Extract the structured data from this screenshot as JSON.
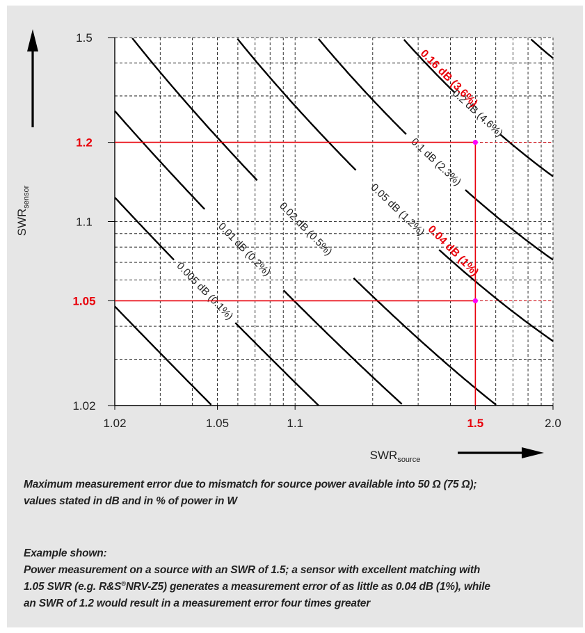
{
  "chart_data": {
    "type": "line",
    "xscale": "log-log mismatch chart",
    "yscale": "log-log mismatch chart",
    "x_ticks": [
      "1.02",
      "1.05",
      "1.1",
      "1.5",
      "2.0"
    ],
    "y_ticks": [
      "1.02",
      "1.05",
      "1.1",
      "1.2",
      "1.5"
    ],
    "highlight_ticks": {
      "x": [
        "1.5"
      ],
      "y": [
        "1.2",
        "1.05"
      ]
    },
    "xlabel": {
      "main": "SWR",
      "sub": "source"
    },
    "ylabel": {
      "main": "SWR",
      "sub": "sensor"
    },
    "xlim": [
      1.02,
      2.0
    ],
    "ylim": [
      1.02,
      1.5
    ],
    "grid": "dashed",
    "series": [
      {
        "name": "0.005 dB (0.1%)",
        "error_db": 0.005
      },
      {
        "name": "0.01 dB (0.2%)",
        "error_db": 0.01
      },
      {
        "name": "0.02 dB (0.5%)",
        "error_db": 0.02
      },
      {
        "name": "0.05 dB (1.2%)",
        "error_db": 0.05
      },
      {
        "name": "0.1 dB (2.3%)",
        "error_db": 0.1
      },
      {
        "name": "0.2 dB (4.6%)",
        "error_db": 0.2
      }
    ],
    "annotations": [
      {
        "text": "0.16 dB (3.6%)",
        "x": 1.5,
        "y": 1.2,
        "color": "#e8000a"
      },
      {
        "text": "0.04 dB (1%)",
        "x": 1.5,
        "y": 1.05,
        "color": "#e8000a"
      }
    ],
    "example_points": [
      {
        "x": 1.5,
        "y": 1.2
      },
      {
        "x": 1.5,
        "y": 1.05
      }
    ]
  },
  "caption": {
    "line1": "Maximum measurement error due to mismatch for source power available into 50 Ω (75 Ω);",
    "line2": "values stated in dB and in % of power in W"
  },
  "example": {
    "heading": "Example shown:",
    "line1": "Power measurement on a source with an SWR of 1.5; a sensor with excellent matching with",
    "line2a": "1.05 SWR (e.g. R&S",
    "reg": "®",
    "line2b": "NRV-Z5) generates a measurement error of as little as 0.04 dB (1%), while",
    "line3": "an SWR of 1.2 would result in a measurement error four times greater"
  },
  "colors": {
    "highlight": "#e8000a",
    "marker": "#ff00ff",
    "background": "#e6e6e6",
    "plot": "#ffffff"
  }
}
